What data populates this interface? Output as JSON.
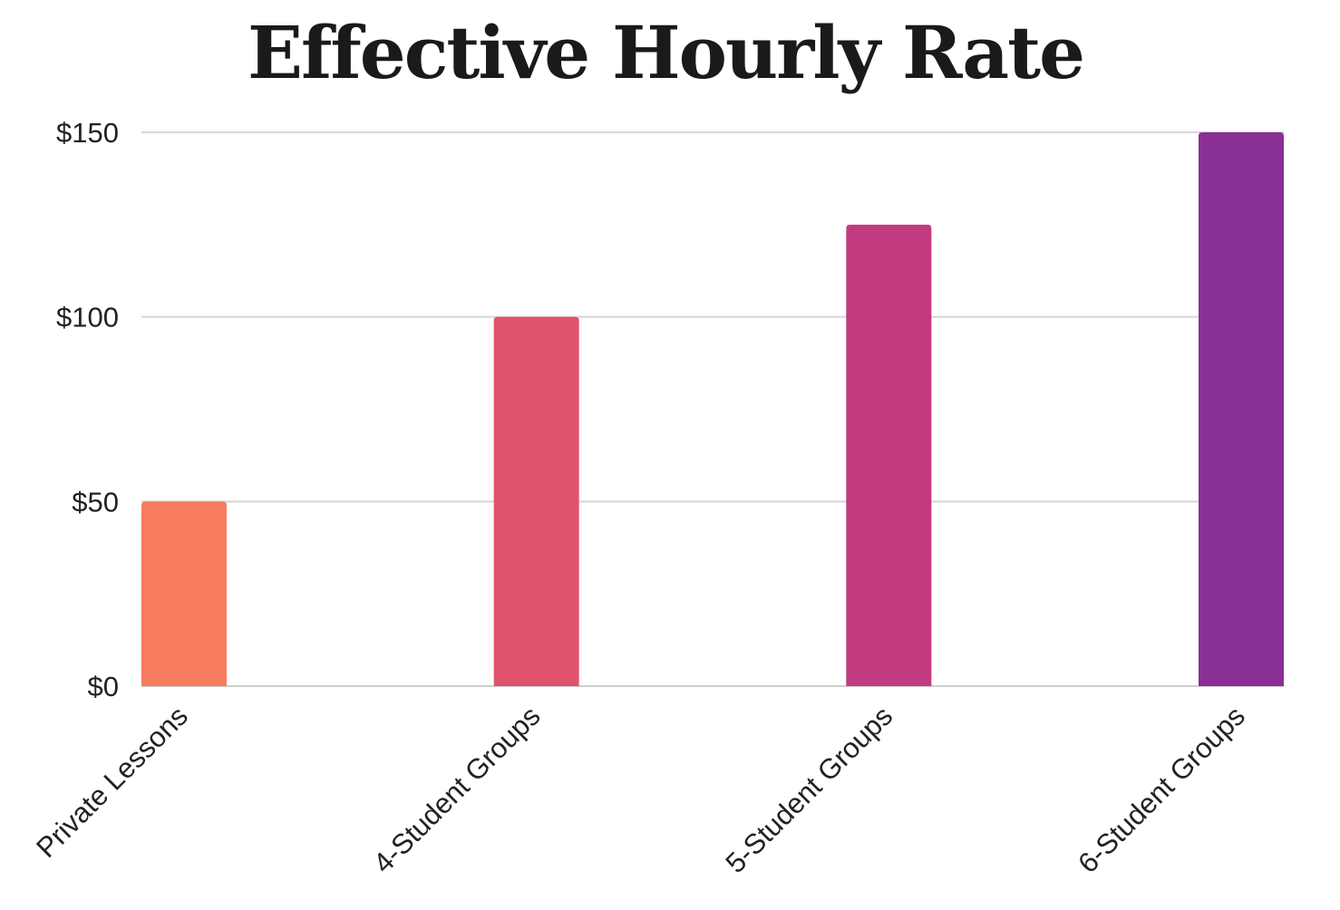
{
  "chart_data": {
    "type": "bar",
    "title": "Effective Hourly Rate",
    "xlabel": "",
    "ylabel": "",
    "categories": [
      "Private Lessons",
      "4-Student Groups",
      "5-Student Groups",
      "6-Student Groups"
    ],
    "values": [
      50,
      100,
      125,
      150
    ],
    "bar_colors": [
      "#f77b5f",
      "#e0536d",
      "#c23a80",
      "#8a3094"
    ],
    "ylim": [
      0,
      150
    ],
    "yticks": [
      0,
      50,
      100,
      150
    ],
    "ytick_labels": [
      "$0",
      "$50",
      "$100",
      "$150"
    ],
    "grid": true,
    "legend": "none"
  }
}
